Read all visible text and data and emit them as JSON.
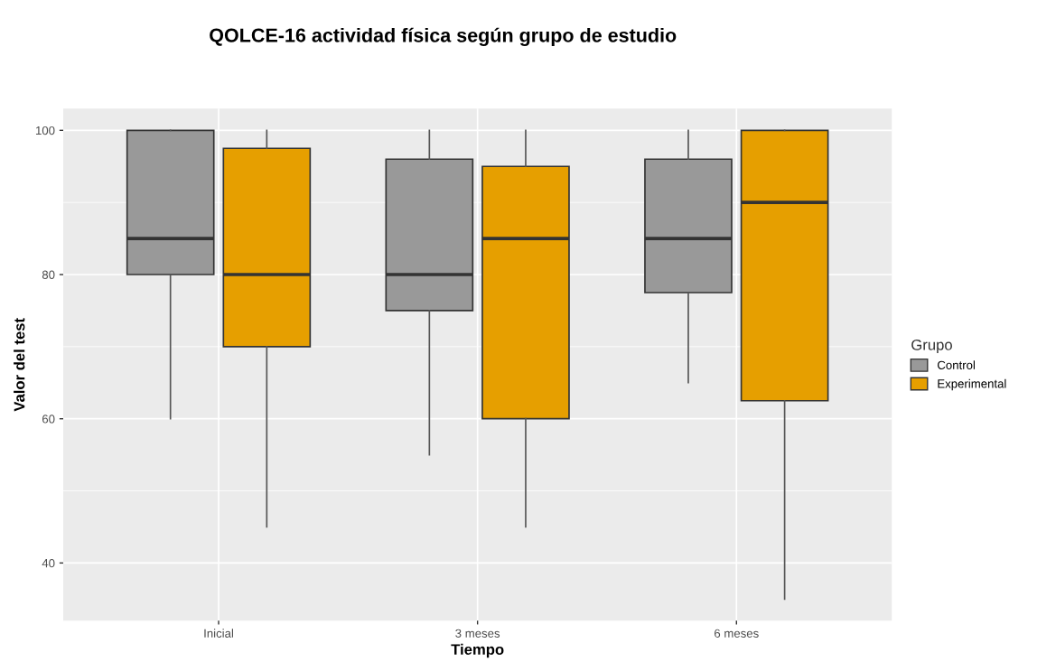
{
  "chart_data": {
    "type": "box",
    "title": "QOLCE-16 actividad física según grupo de estudio",
    "xlabel": "Tiempo",
    "ylabel": "Valor del test",
    "legend_title": "Grupo",
    "categories": [
      "Inicial",
      "3 meses",
      "6 meses"
    ],
    "series": [
      {
        "name": "Control",
        "color": "#999999",
        "boxes": [
          {
            "low": 60,
            "q1": 80,
            "median": 85,
            "q3": 100,
            "high": 100
          },
          {
            "low": 55,
            "q1": 75,
            "median": 80,
            "q3": 96,
            "high": 100
          },
          {
            "low": 65,
            "q1": 77.5,
            "median": 85,
            "q3": 96,
            "high": 100
          }
        ]
      },
      {
        "name": "Experimental",
        "color": "#e69f00",
        "boxes": [
          {
            "low": 45,
            "q1": 70,
            "median": 80,
            "q3": 97.5,
            "high": 100
          },
          {
            "low": 45,
            "q1": 60,
            "median": 85,
            "q3": 95,
            "high": 100
          },
          {
            "low": 35,
            "q1": 62.5,
            "median": 90,
            "q3": 100,
            "high": 100
          }
        ]
      }
    ],
    "ylim": [
      32,
      103
    ],
    "yticks": [
      40,
      60,
      80,
      100
    ],
    "grid": true,
    "legend": "right"
  }
}
